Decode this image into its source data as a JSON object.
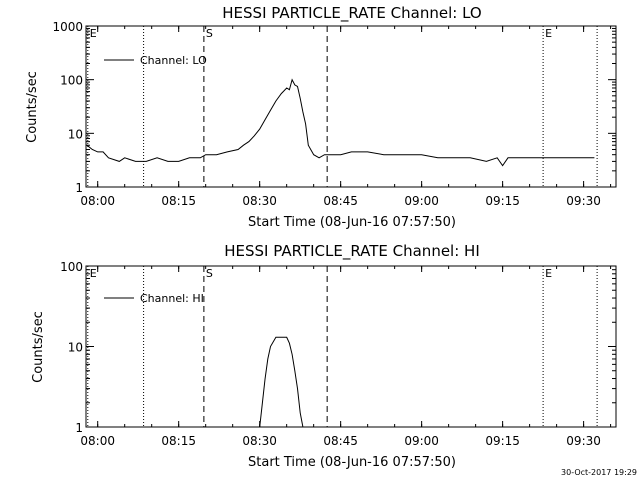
{
  "chart_data": [
    {
      "type": "line",
      "title": "HESSI PARTICLE_RATE Channel: LO",
      "xlabel": "Start Time (08-Jun-16 07:57:50)",
      "ylabel": "Counts/sec",
      "yscale": "log",
      "ylim": [
        1,
        1000
      ],
      "xlim": [
        "07:57:50",
        "09:36:00"
      ],
      "grid": false,
      "legend_position": "top-left",
      "x_tick_labels": [
        "08:00",
        "08:15",
        "08:30",
        "08:45",
        "09:00",
        "09:15",
        "09:30"
      ],
      "y_tick_labels": [
        "1",
        "10",
        "100",
        "1000"
      ],
      "y_tick_values": [
        1,
        10,
        100,
        1000
      ],
      "event_markers": [
        {
          "time": "07:58:10",
          "label": "E",
          "style": "dotted"
        },
        {
          "time": "08:08:30",
          "label": "",
          "style": "dotted"
        },
        {
          "time": "08:19:40",
          "label": "S",
          "style": "dashed"
        },
        {
          "time": "08:42:30",
          "label": "",
          "style": "dashed"
        },
        {
          "time": "09:22:30",
          "label": "E",
          "style": "dotted"
        },
        {
          "time": "09:32:30",
          "label": "",
          "style": "dotted"
        }
      ],
      "series": [
        {
          "name": "Channel: LO",
          "x": [
            "07:58:00",
            "07:59:00",
            "08:00:00",
            "08:01:00",
            "08:02:00",
            "08:04:00",
            "08:05:00",
            "08:07:00",
            "08:09:00",
            "08:11:00",
            "08:13:00",
            "08:15:00",
            "08:17:00",
            "08:19:00",
            "08:20:00",
            "08:22:00",
            "08:24:00",
            "08:26:00",
            "08:27:00",
            "08:28:00",
            "08:29:00",
            "08:30:00",
            "08:31:00",
            "08:32:00",
            "08:33:00",
            "08:34:00",
            "08:35:00",
            "08:35:30",
            "08:36:00",
            "08:36:30",
            "08:37:00",
            "08:37:30",
            "08:38:00",
            "08:38:30",
            "08:39:00",
            "08:40:00",
            "08:41:00",
            "08:42:00",
            "08:43:00",
            "08:45:00",
            "08:47:00",
            "08:50:00",
            "08:53:00",
            "08:56:00",
            "09:00:00",
            "09:03:00",
            "09:06:00",
            "09:09:00",
            "09:12:00",
            "09:14:00",
            "09:15:00",
            "09:16:00",
            "09:18:00",
            "09:21:00",
            "09:24:00",
            "09:27:00",
            "09:30:00",
            "09:32:00"
          ],
          "values": [
            6,
            5,
            4.5,
            4.5,
            3.5,
            3,
            3.5,
            3,
            3,
            3.5,
            3,
            3,
            3.5,
            3.5,
            4,
            4,
            4.5,
            5,
            6,
            7,
            9,
            12,
            18,
            27,
            40,
            55,
            70,
            65,
            100,
            80,
            75,
            45,
            25,
            15,
            6,
            4,
            3.5,
            4,
            4,
            4,
            4.5,
            4.5,
            4,
            4,
            4,
            3.5,
            3.5,
            3.5,
            3,
            3.5,
            2.5,
            3.5,
            3.5,
            3.5,
            3.5,
            3.5,
            3.5,
            3.5
          ]
        }
      ]
    },
    {
      "type": "line",
      "title": "HESSI PARTICLE_RATE Channel: HI",
      "xlabel": "Start Time (08-Jun-16 07:57:50)",
      "ylabel": "Counts/sec",
      "yscale": "log",
      "ylim": [
        1,
        100
      ],
      "xlim": [
        "07:57:50",
        "09:36:00"
      ],
      "grid": false,
      "legend_position": "top-left",
      "x_tick_labels": [
        "08:00",
        "08:15",
        "08:30",
        "08:45",
        "09:00",
        "09:15",
        "09:30"
      ],
      "y_tick_labels": [
        "1",
        "10",
        "100"
      ],
      "y_tick_values": [
        1,
        10,
        100
      ],
      "event_markers": [
        {
          "time": "07:58:10",
          "label": "E",
          "style": "dotted"
        },
        {
          "time": "08:08:30",
          "label": "",
          "style": "dotted"
        },
        {
          "time": "08:19:40",
          "label": "S",
          "style": "dashed"
        },
        {
          "time": "08:42:30",
          "label": "",
          "style": "dashed"
        },
        {
          "time": "09:22:30",
          "label": "E",
          "style": "dotted"
        },
        {
          "time": "09:32:30",
          "label": "",
          "style": "dotted"
        }
      ],
      "series": [
        {
          "name": "Channel: HI",
          "x": [
            "08:30:00",
            "08:30:30",
            "08:31:00",
            "08:31:30",
            "08:32:00",
            "08:33:00",
            "08:34:00",
            "08:35:00",
            "08:35:30",
            "08:36:00",
            "08:36:30",
            "08:37:00",
            "08:37:30",
            "08:38:00"
          ],
          "values": [
            1,
            2,
            4,
            7,
            10,
            13,
            13,
            13,
            11,
            8,
            5,
            3,
            1.5,
            1
          ]
        }
      ]
    }
  ],
  "footer": {
    "stamp": "30-Oct-2017 19:29"
  }
}
